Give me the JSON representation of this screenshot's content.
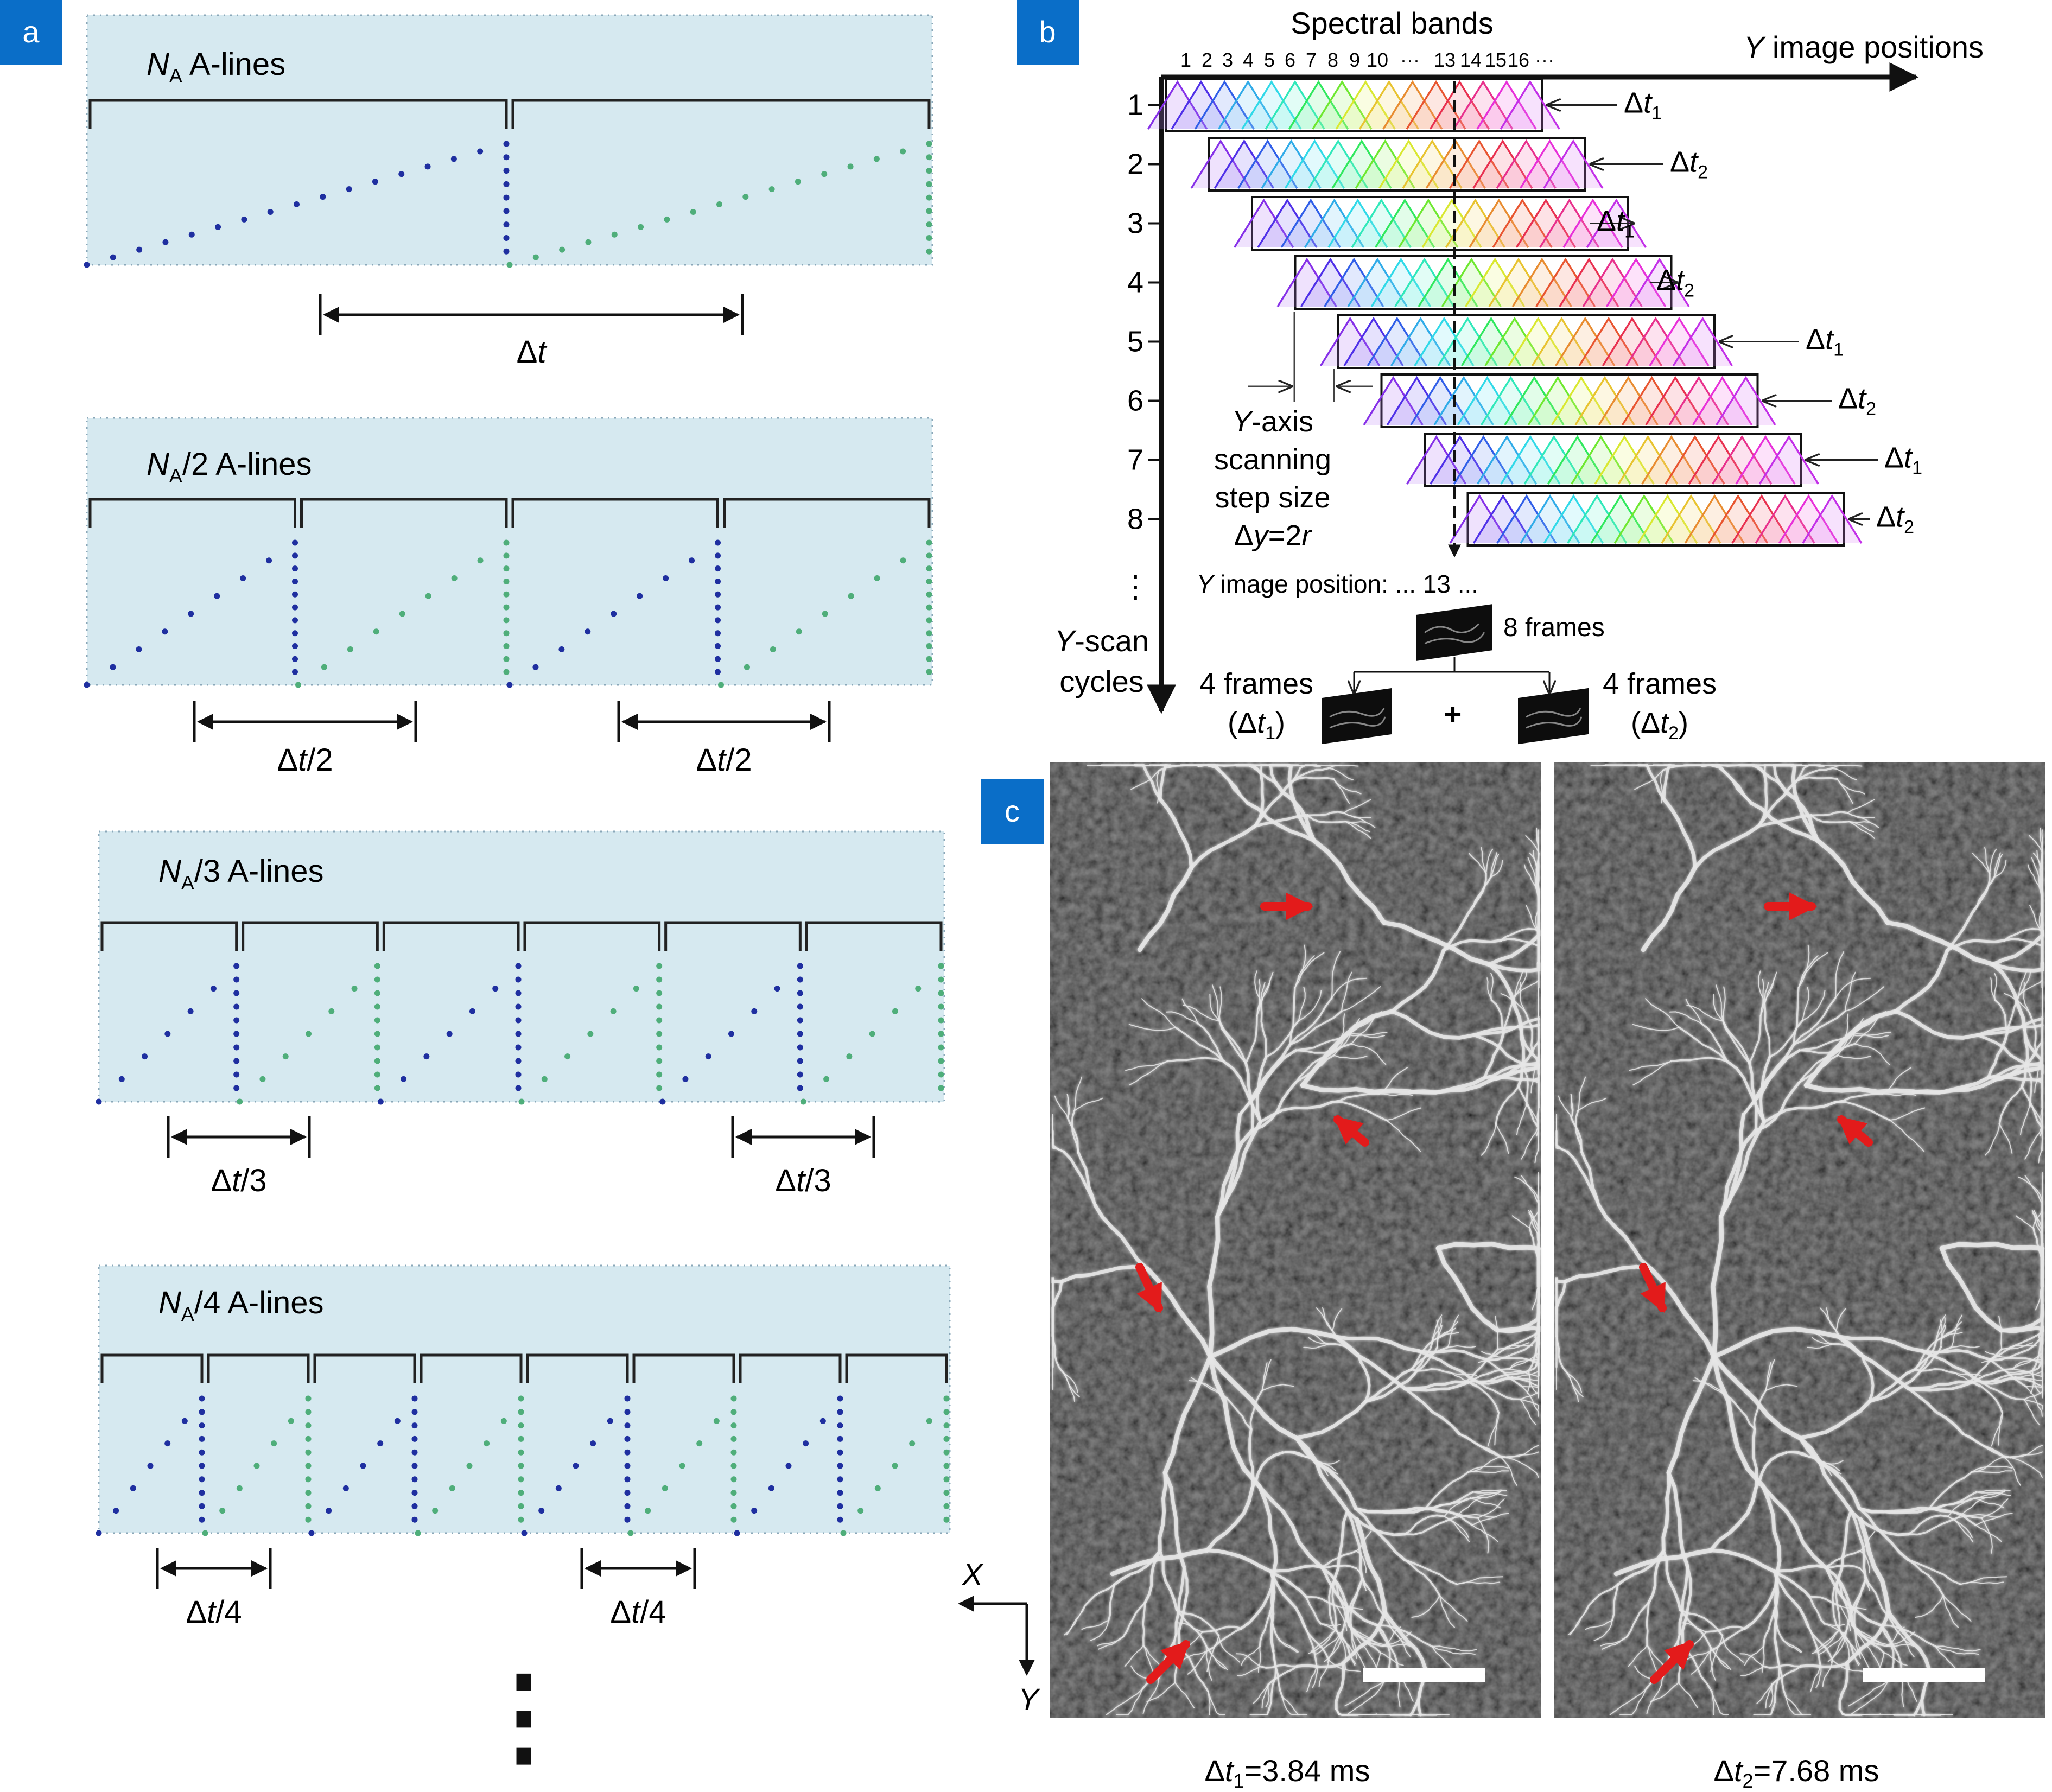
{
  "colors": {
    "panel_tag": "#0a6ec8",
    "sweep_bg": "#d6e9f0",
    "dot_blue": "#1f2fa0",
    "dot_green": "#4fae7a",
    "arrow_red": "#e31b1b"
  },
  "panel_a": {
    "tag": "a",
    "rows": [
      {
        "label_base": "N",
        "label_sub": "A",
        "label_rest": " A-lines",
        "segments": 2,
        "intervals": [
          {
            "delta": "Δ",
            "var": "t",
            "tail": ""
          }
        ]
      },
      {
        "label_base": "N",
        "label_sub": "A",
        "label_rest": "/2 A-lines",
        "segments": 4,
        "intervals": [
          {
            "delta": "Δ",
            "var": "t",
            "tail": "/2"
          },
          {
            "delta": "Δ",
            "var": "t",
            "tail": "/2"
          }
        ]
      },
      {
        "label_base": "N",
        "label_sub": "A",
        "label_rest": "/3 A-lines",
        "segments": 6,
        "intervals": [
          {
            "delta": "Δ",
            "var": "t",
            "tail": "/3"
          },
          {
            "delta": "Δ",
            "var": "t",
            "tail": "/3"
          }
        ]
      },
      {
        "label_base": "N",
        "label_sub": "A",
        "label_rest": "/4 A-lines",
        "segments": 8,
        "intervals": [
          {
            "delta": "Δ",
            "var": "t",
            "tail": "/4"
          },
          {
            "delta": "Δ",
            "var": "t",
            "tail": "/4"
          }
        ]
      }
    ]
  },
  "panel_b": {
    "tag": "b",
    "title": "Spectral bands",
    "band_numbers": [
      "1",
      "2",
      "3",
      "4",
      "5",
      "6",
      "7",
      "8",
      "9",
      "10",
      "···",
      "13",
      "14",
      "15",
      "16",
      "···"
    ],
    "x_axis_italic": "Y",
    "x_axis_rest": " image positions",
    "rows": [
      {
        "num": "1",
        "delta": "Δ",
        "var": "t",
        "sub": "1"
      },
      {
        "num": "2",
        "delta": "Δ",
        "var": "t",
        "sub": "2"
      },
      {
        "num": "3",
        "delta": "Δ",
        "var": "t",
        "sub": "1"
      },
      {
        "num": "4",
        "delta": "Δ",
        "var": "t",
        "sub": "2"
      },
      {
        "num": "5",
        "delta": "Δ",
        "var": "t",
        "sub": "1"
      },
      {
        "num": "6",
        "delta": "Δ",
        "var": "t",
        "sub": "2"
      },
      {
        "num": "7",
        "delta": "Δ",
        "var": "t",
        "sub": "1"
      },
      {
        "num": "8",
        "delta": "Δ",
        "var": "t",
        "sub": "2"
      }
    ],
    "row_ellipsis": "⋮",
    "y_axis_italic": "Y",
    "y_axis_rest": "-scan",
    "y_axis_line2": "cycles",
    "step_italic": "Y",
    "step_rest": "-axis",
    "step_line2": "scanning",
    "step_line3": "step size",
    "step_delta": "Δ",
    "step_y": "y",
    "step_eq": "=2",
    "step_r": "r",
    "position_italic": "Y",
    "position_rest": " image position: ... 13   ...",
    "frames_total": "8 frames",
    "frames_left": "4 frames",
    "frames_left_delta": "(Δ",
    "frames_left_var": "t",
    "frames_left_sub": "1",
    "frames_left_close": ")",
    "frames_right": "4 frames",
    "frames_right_delta": "(Δ",
    "frames_right_var": "t",
    "frames_right_sub": "2",
    "frames_right_close": ")",
    "plus": "+"
  },
  "panel_c": {
    "tag": "c",
    "axis_x": "X",
    "axis_y": "Y",
    "captions": [
      {
        "delta": "Δ",
        "var": "t",
        "sub": "1",
        "value": "=3.84 ms"
      },
      {
        "delta": "Δ",
        "var": "t",
        "sub": "2",
        "value": "=7.68 ms"
      }
    ]
  },
  "vertical_ellipsis": "⋮"
}
